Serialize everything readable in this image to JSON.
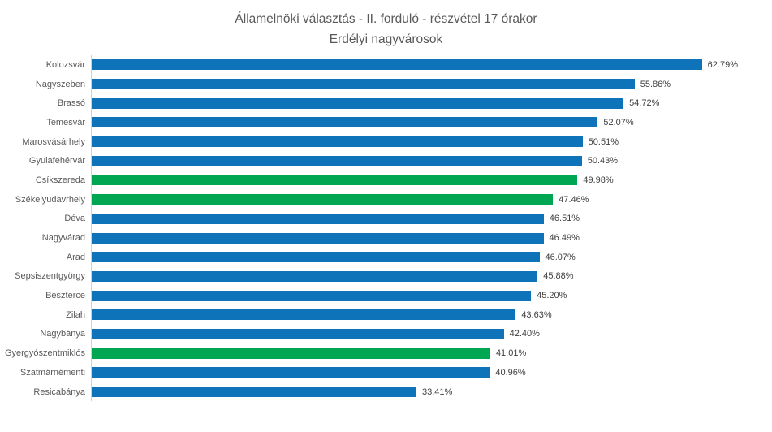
{
  "title": {
    "line1": "Államelnöki választás - II. forduló - részvétel 17 órakor",
    "line2": "Erdélyi nagyvárosok"
  },
  "colors": {
    "blue": "#0E73B9",
    "green": "#00A651",
    "axis_line": "#D2D2D2",
    "title_text": "#595959",
    "category_text": "#595959",
    "value_text": "#404040"
  },
  "chart_data": {
    "type": "bar",
    "orientation": "horizontal",
    "title": "Államelnöki választás - II. forduló - részvétel 17 órakor",
    "subtitle": "Erdélyi nagyvárosok",
    "categories": [
      "Kolozsvár",
      "Nagyszeben",
      "Brassó",
      "Temesvár",
      "Marosvásárhely",
      "Gyulafehérvár",
      "Csíkszereda",
      "Székelyudavrhely",
      "Déva",
      "Nagyvárad",
      "Arad",
      "Sepsiszentgyörgy",
      "Beszterce",
      "Zilah",
      "Nagybánya",
      "Gyergyószentmiklós",
      "Szatmárnémenti",
      "Resicabánya"
    ],
    "values": [
      62.79,
      55.86,
      54.72,
      52.07,
      50.51,
      50.43,
      49.98,
      47.46,
      46.51,
      46.49,
      46.07,
      45.88,
      45.2,
      43.63,
      42.4,
      41.01,
      40.96,
      33.41
    ],
    "data_labels": [
      "62.79%",
      "55.86%",
      "54.72%",
      "52.07%",
      "50.51%",
      "50.43%",
      "49.98%",
      "47.46%",
      "46.51%",
      "46.49%",
      "46.07%",
      "45.88%",
      "45.20%",
      "43.63%",
      "42.40%",
      "41.01%",
      "40.96%",
      "33.41%"
    ],
    "bar_colors": [
      "blue",
      "blue",
      "blue",
      "blue",
      "blue",
      "blue",
      "green",
      "green",
      "blue",
      "blue",
      "blue",
      "blue",
      "blue",
      "blue",
      "blue",
      "green",
      "blue",
      "blue"
    ],
    "xlim": [
      0,
      70
    ],
    "grid": false,
    "legend": "none",
    "value_axis_visible": false,
    "category_axis_line": true
  }
}
